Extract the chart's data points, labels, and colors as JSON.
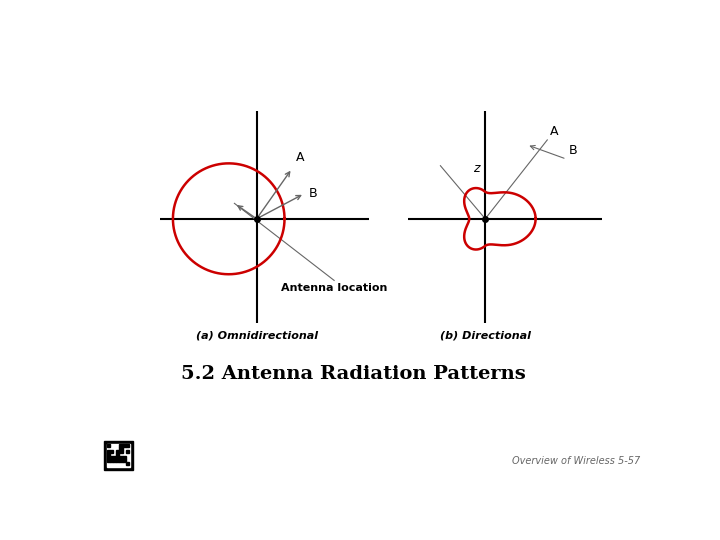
{
  "title": "5.2 Antenna Radiation Patterns",
  "subtitle": "Overview of Wireless 5-57",
  "caption_a": "(a) Omnidirectional",
  "caption_b": "(b) Directional",
  "antenna_location_label": "Antenna location",
  "label_A": "A",
  "label_B": "B",
  "label_z": "z",
  "red_color": "#cc0000",
  "black_color": "#000000",
  "gray_color": "#666666",
  "bg_color": "#ffffff",
  "title_fontsize": 14,
  "caption_fontsize": 8,
  "label_fontsize": 9
}
